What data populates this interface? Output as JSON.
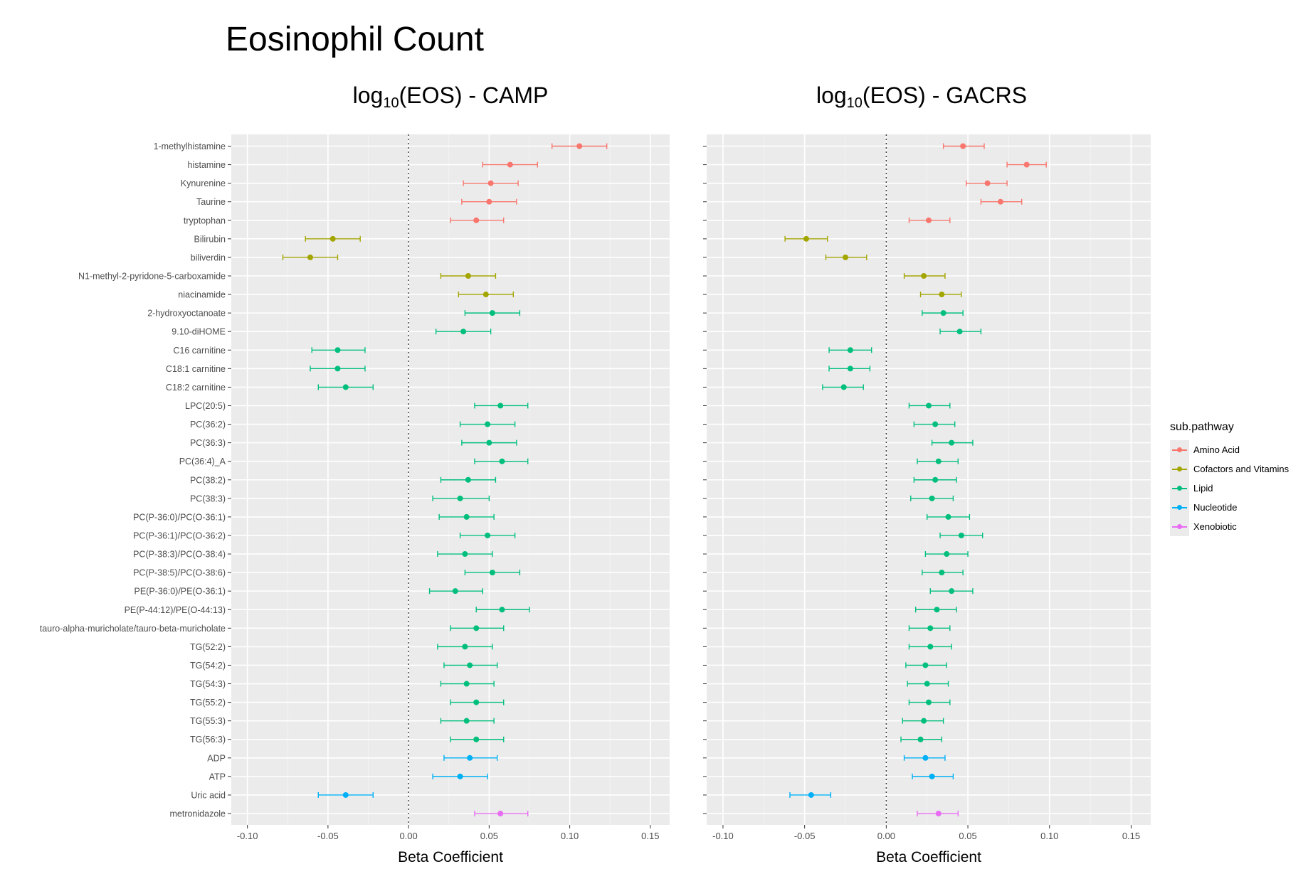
{
  "figure": {
    "title": "Eosinophil Count",
    "panels": [
      {
        "title_pre": "log",
        "title_sub": "10",
        "title_post": "(EOS) - CAMP",
        "xlabel": "Beta Coefficient"
      },
      {
        "title_pre": "log",
        "title_sub": "10",
        "title_post": "(EOS) - GACRS",
        "xlabel": "Beta Coefficient"
      }
    ],
    "legend": {
      "title": "sub.pathway",
      "items": [
        {
          "label": "Amino Acid",
          "color": "#F8766D"
        },
        {
          "label": "Cofactors and Vitamins",
          "color": "#A3A500"
        },
        {
          "label": "Lipid",
          "color": "#00BF7D"
        },
        {
          "label": "Nucleotide",
          "color": "#00B0F6"
        },
        {
          "label": "Xenobiotic",
          "color": "#E76BF3"
        }
      ]
    }
  },
  "chart_data": [
    {
      "type": "scatter",
      "subtype": "forest-plot",
      "title": "log10(EOS) - CAMP",
      "xlabel": "Beta Coefficient",
      "ylabel": "",
      "xlim": [
        -0.11,
        0.162
      ],
      "xticks": [
        -0.1,
        -0.05,
        0.0,
        0.05,
        0.1,
        0.15
      ],
      "xtick_labels": [
        "-0.10",
        "-0.05",
        "0.00",
        "0.05",
        "0.10",
        "0.15"
      ],
      "reference_line": 0,
      "grid": true,
      "legend": "right",
      "points": [
        {
          "label": "1-methylhistamine",
          "group": "Amino Acid",
          "est": 0.106,
          "lo": 0.089,
          "hi": 0.123
        },
        {
          "label": "histamine",
          "group": "Amino Acid",
          "est": 0.063,
          "lo": 0.046,
          "hi": 0.08
        },
        {
          "label": "Kynurenine",
          "group": "Amino Acid",
          "est": 0.051,
          "lo": 0.034,
          "hi": 0.068
        },
        {
          "label": "Taurine",
          "group": "Amino Acid",
          "est": 0.05,
          "lo": 0.033,
          "hi": 0.067
        },
        {
          "label": "tryptophan",
          "group": "Amino Acid",
          "est": 0.042,
          "lo": 0.026,
          "hi": 0.059
        },
        {
          "label": "Bilirubin",
          "group": "Cofactors and Vitamins",
          "est": -0.047,
          "lo": -0.064,
          "hi": -0.03
        },
        {
          "label": "biliverdin",
          "group": "Cofactors and Vitamins",
          "est": -0.061,
          "lo": -0.078,
          "hi": -0.044
        },
        {
          "label": "N1-methyl-2-pyridone-5-carboxamide",
          "group": "Cofactors and Vitamins",
          "est": 0.037,
          "lo": 0.02,
          "hi": 0.054
        },
        {
          "label": "niacinamide",
          "group": "Cofactors and Vitamins",
          "est": 0.048,
          "lo": 0.031,
          "hi": 0.065
        },
        {
          "label": "2-hydroxyoctanoate",
          "group": "Lipid",
          "est": 0.052,
          "lo": 0.035,
          "hi": 0.069
        },
        {
          "label": "9.10-diHOME",
          "group": "Lipid",
          "est": 0.034,
          "lo": 0.017,
          "hi": 0.051
        },
        {
          "label": "C16 carnitine",
          "group": "Lipid",
          "est": -0.044,
          "lo": -0.06,
          "hi": -0.027
        },
        {
          "label": "C18:1 carnitine",
          "group": "Lipid",
          "est": -0.044,
          "lo": -0.061,
          "hi": -0.027
        },
        {
          "label": "C18:2 carnitine",
          "group": "Lipid",
          "est": -0.039,
          "lo": -0.056,
          "hi": -0.022
        },
        {
          "label": "LPC(20:5)",
          "group": "Lipid",
          "est": 0.057,
          "lo": 0.041,
          "hi": 0.074
        },
        {
          "label": "PC(36:2)",
          "group": "Lipid",
          "est": 0.049,
          "lo": 0.032,
          "hi": 0.066
        },
        {
          "label": "PC(36:3)",
          "group": "Lipid",
          "est": 0.05,
          "lo": 0.033,
          "hi": 0.067
        },
        {
          "label": "PC(36:4)_A",
          "group": "Lipid",
          "est": 0.058,
          "lo": 0.041,
          "hi": 0.074
        },
        {
          "label": "PC(38:2)",
          "group": "Lipid",
          "est": 0.037,
          "lo": 0.02,
          "hi": 0.054
        },
        {
          "label": "PC(38:3)",
          "group": "Lipid",
          "est": 0.032,
          "lo": 0.015,
          "hi": 0.05
        },
        {
          "label": "PC(P-36:0)/PC(O-36:1)",
          "group": "Lipid",
          "est": 0.036,
          "lo": 0.019,
          "hi": 0.053
        },
        {
          "label": "PC(P-36:1)/PC(O-36:2)",
          "group": "Lipid",
          "est": 0.049,
          "lo": 0.032,
          "hi": 0.066
        },
        {
          "label": "PC(P-38:3)/PC(O-38:4)",
          "group": "Lipid",
          "est": 0.035,
          "lo": 0.018,
          "hi": 0.052
        },
        {
          "label": "PC(P-38:5)/PC(O-38:6)",
          "group": "Lipid",
          "est": 0.052,
          "lo": 0.035,
          "hi": 0.069
        },
        {
          "label": "PE(P-36:0)/PE(O-36:1)",
          "group": "Lipid",
          "est": 0.029,
          "lo": 0.013,
          "hi": 0.046
        },
        {
          "label": "PE(P-44:12)/PE(O-44:13)",
          "group": "Lipid",
          "est": 0.058,
          "lo": 0.042,
          "hi": 0.075
        },
        {
          "label": "tauro-alpha-muricholate/tauro-beta-muricholate",
          "group": "Lipid",
          "est": 0.042,
          "lo": 0.026,
          "hi": 0.059
        },
        {
          "label": "TG(52:2)",
          "group": "Lipid",
          "est": 0.035,
          "lo": 0.018,
          "hi": 0.052
        },
        {
          "label": "TG(54:2)",
          "group": "Lipid",
          "est": 0.038,
          "lo": 0.022,
          "hi": 0.055
        },
        {
          "label": "TG(54:3)",
          "group": "Lipid",
          "est": 0.036,
          "lo": 0.02,
          "hi": 0.053
        },
        {
          "label": "TG(55:2)",
          "group": "Lipid",
          "est": 0.042,
          "lo": 0.026,
          "hi": 0.059
        },
        {
          "label": "TG(55:3)",
          "group": "Lipid",
          "est": 0.036,
          "lo": 0.02,
          "hi": 0.053
        },
        {
          "label": "TG(56:3)",
          "group": "Lipid",
          "est": 0.042,
          "lo": 0.026,
          "hi": 0.059
        },
        {
          "label": "ADP",
          "group": "Nucleotide",
          "est": 0.038,
          "lo": 0.022,
          "hi": 0.055
        },
        {
          "label": "ATP",
          "group": "Nucleotide",
          "est": 0.032,
          "lo": 0.015,
          "hi": 0.049
        },
        {
          "label": "Uric acid",
          "group": "Nucleotide",
          "est": -0.039,
          "lo": -0.056,
          "hi": -0.022
        },
        {
          "label": "metronidazole",
          "group": "Xenobiotic",
          "est": 0.057,
          "lo": 0.041,
          "hi": 0.074
        }
      ]
    },
    {
      "type": "scatter",
      "subtype": "forest-plot",
      "title": "log10(EOS) - GACRS",
      "xlabel": "Beta Coefficient",
      "ylabel": "",
      "xlim": [
        -0.11,
        0.162
      ],
      "xticks": [
        -0.1,
        -0.05,
        0.0,
        0.05,
        0.1,
        0.15
      ],
      "xtick_labels": [
        "-0.10",
        "-0.05",
        "0.00",
        "0.05",
        "0.10",
        "0.15"
      ],
      "reference_line": 0,
      "grid": true,
      "legend": "right",
      "points": [
        {
          "label": "1-methylhistamine",
          "group": "Amino Acid",
          "est": 0.047,
          "lo": 0.035,
          "hi": 0.06
        },
        {
          "label": "histamine",
          "group": "Amino Acid",
          "est": 0.086,
          "lo": 0.074,
          "hi": 0.098
        },
        {
          "label": "Kynurenine",
          "group": "Amino Acid",
          "est": 0.062,
          "lo": 0.049,
          "hi": 0.074
        },
        {
          "label": "Taurine",
          "group": "Amino Acid",
          "est": 0.07,
          "lo": 0.058,
          "hi": 0.083
        },
        {
          "label": "tryptophan",
          "group": "Amino Acid",
          "est": 0.026,
          "lo": 0.014,
          "hi": 0.039
        },
        {
          "label": "Bilirubin",
          "group": "Cofactors and Vitamins",
          "est": -0.049,
          "lo": -0.062,
          "hi": -0.036
        },
        {
          "label": "biliverdin",
          "group": "Cofactors and Vitamins",
          "est": -0.025,
          "lo": -0.037,
          "hi": -0.012
        },
        {
          "label": "N1-methyl-2-pyridone-5-carboxamide",
          "group": "Cofactors and Vitamins",
          "est": 0.023,
          "lo": 0.011,
          "hi": 0.036
        },
        {
          "label": "niacinamide",
          "group": "Cofactors and Vitamins",
          "est": 0.034,
          "lo": 0.021,
          "hi": 0.046
        },
        {
          "label": "2-hydroxyoctanoate",
          "group": "Lipid",
          "est": 0.035,
          "lo": 0.022,
          "hi": 0.047
        },
        {
          "label": "9.10-diHOME",
          "group": "Lipid",
          "est": 0.045,
          "lo": 0.033,
          "hi": 0.058
        },
        {
          "label": "C16 carnitine",
          "group": "Lipid",
          "est": -0.022,
          "lo": -0.035,
          "hi": -0.009
        },
        {
          "label": "C18:1 carnitine",
          "group": "Lipid",
          "est": -0.022,
          "lo": -0.035,
          "hi": -0.01
        },
        {
          "label": "C18:2 carnitine",
          "group": "Lipid",
          "est": -0.026,
          "lo": -0.039,
          "hi": -0.014
        },
        {
          "label": "LPC(20:5)",
          "group": "Lipid",
          "est": 0.026,
          "lo": 0.014,
          "hi": 0.039
        },
        {
          "label": "PC(36:2)",
          "group": "Lipid",
          "est": 0.03,
          "lo": 0.017,
          "hi": 0.042
        },
        {
          "label": "PC(36:3)",
          "group": "Lipid",
          "est": 0.04,
          "lo": 0.028,
          "hi": 0.053
        },
        {
          "label": "PC(36:4)_A",
          "group": "Lipid",
          "est": 0.032,
          "lo": 0.019,
          "hi": 0.044
        },
        {
          "label": "PC(38:2)",
          "group": "Lipid",
          "est": 0.03,
          "lo": 0.017,
          "hi": 0.043
        },
        {
          "label": "PC(38:3)",
          "group": "Lipid",
          "est": 0.028,
          "lo": 0.015,
          "hi": 0.041
        },
        {
          "label": "PC(P-36:0)/PC(O-36:1)",
          "group": "Lipid",
          "est": 0.038,
          "lo": 0.025,
          "hi": 0.051
        },
        {
          "label": "PC(P-36:1)/PC(O-36:2)",
          "group": "Lipid",
          "est": 0.046,
          "lo": 0.033,
          "hi": 0.059
        },
        {
          "label": "PC(P-38:3)/PC(O-38:4)",
          "group": "Lipid",
          "est": 0.037,
          "lo": 0.024,
          "hi": 0.05
        },
        {
          "label": "PC(P-38:5)/PC(O-38:6)",
          "group": "Lipid",
          "est": 0.034,
          "lo": 0.022,
          "hi": 0.047
        },
        {
          "label": "PE(P-36:0)/PE(O-36:1)",
          "group": "Lipid",
          "est": 0.04,
          "lo": 0.027,
          "hi": 0.053
        },
        {
          "label": "PE(P-44:12)/PE(O-44:13)",
          "group": "Lipid",
          "est": 0.031,
          "lo": 0.018,
          "hi": 0.043
        },
        {
          "label": "tauro-alpha-muricholate/tauro-beta-muricholate",
          "group": "Lipid",
          "est": 0.027,
          "lo": 0.014,
          "hi": 0.039
        },
        {
          "label": "TG(52:2)",
          "group": "Lipid",
          "est": 0.027,
          "lo": 0.014,
          "hi": 0.04
        },
        {
          "label": "TG(54:2)",
          "group": "Lipid",
          "est": 0.024,
          "lo": 0.012,
          "hi": 0.037
        },
        {
          "label": "TG(54:3)",
          "group": "Lipid",
          "est": 0.025,
          "lo": 0.013,
          "hi": 0.038
        },
        {
          "label": "TG(55:2)",
          "group": "Lipid",
          "est": 0.026,
          "lo": 0.014,
          "hi": 0.039
        },
        {
          "label": "TG(55:3)",
          "group": "Lipid",
          "est": 0.023,
          "lo": 0.01,
          "hi": 0.035
        },
        {
          "label": "TG(56:3)",
          "group": "Lipid",
          "est": 0.021,
          "lo": 0.009,
          "hi": 0.034
        },
        {
          "label": "ADP",
          "group": "Nucleotide",
          "est": 0.024,
          "lo": 0.011,
          "hi": 0.036
        },
        {
          "label": "ATP",
          "group": "Nucleotide",
          "est": 0.028,
          "lo": 0.016,
          "hi": 0.041
        },
        {
          "label": "Uric acid",
          "group": "Nucleotide",
          "est": -0.046,
          "lo": -0.059,
          "hi": -0.034
        },
        {
          "label": "metronidazole",
          "group": "Xenobiotic",
          "est": 0.032,
          "lo": 0.019,
          "hi": 0.044
        }
      ]
    }
  ]
}
